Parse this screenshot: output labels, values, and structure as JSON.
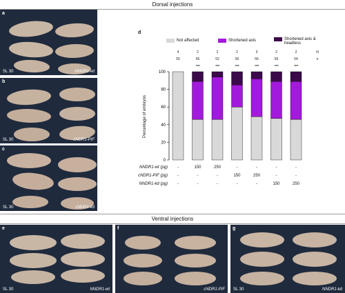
{
  "headers": {
    "dorsal": "Dorsal injections",
    "ventral": "Ventral injections"
  },
  "panels": [
    {
      "letter": "a",
      "stage": "SL 30",
      "construct": "NNDR1-wt"
    },
    {
      "letter": "b",
      "stage": "SL 30",
      "construct": "cNDR1-PIF"
    },
    {
      "letter": "c",
      "stage": "SL 30",
      "construct": "cNDR1-kd"
    },
    {
      "letter": "e",
      "stage": "SL 30",
      "construct": "NNDR1-wt"
    },
    {
      "letter": "f",
      "stage": "",
      "construct": "cNDR1-PIF"
    },
    {
      "letter": "g",
      "stage": "SL 30",
      "construct": "NNDR1-kd"
    }
  ],
  "chart_data": {
    "type": "bar",
    "letter": "d",
    "ylabel": "Percentage of embryos",
    "ylim": [
      0,
      100
    ],
    "yticks": [
      "0",
      "20",
      "40",
      "60",
      "80",
      "100"
    ],
    "legend": [
      {
        "label": "Not affected",
        "color": "#d9d9d9"
      },
      {
        "label": "Shortened axis",
        "color": "#a21adb"
      },
      {
        "label": "Shortened axis & headless",
        "color": "#3b0a4a"
      }
    ],
    "top_header": {
      "row1": "N",
      "row2": "n"
    },
    "top_values": [
      {
        "N": "4",
        "n": "55"
      },
      {
        "N": "2",
        "n": "56"
      },
      {
        "N": "2",
        "n": "52"
      },
      {
        "N": "2",
        "n": "56"
      },
      {
        "N": "3",
        "n": "56"
      },
      {
        "N": "2",
        "n": "56"
      },
      {
        "N": "2",
        "n": "54"
      }
    ],
    "significance": [
      "",
      "****",
      "****",
      "****",
      "****",
      "****",
      "****"
    ],
    "series": [
      {
        "name": "Not affected",
        "values": [
          100,
          46,
          46,
          60,
          49,
          47,
          46
        ]
      },
      {
        "name": "Shortened axis",
        "values": [
          0,
          43,
          48,
          25,
          43,
          42,
          43
        ]
      },
      {
        "name": "Shortened axis & headless",
        "values": [
          0,
          11,
          6,
          15,
          8,
          11,
          11
        ]
      }
    ],
    "conditions": [
      {
        "label": "NNDR1-wt (pg)",
        "values": [
          "-",
          "150",
          "250",
          "-",
          "-",
          "-",
          "-"
        ]
      },
      {
        "label": "cNDR1-PIF (pg)",
        "values": [
          "-",
          "-",
          "-",
          "150",
          "250",
          "-",
          "-"
        ]
      },
      {
        "label": "NNDR1-kd (pg)",
        "values": [
          "-",
          "-",
          "-",
          "-",
          "-",
          "150",
          "250"
        ]
      }
    ]
  }
}
